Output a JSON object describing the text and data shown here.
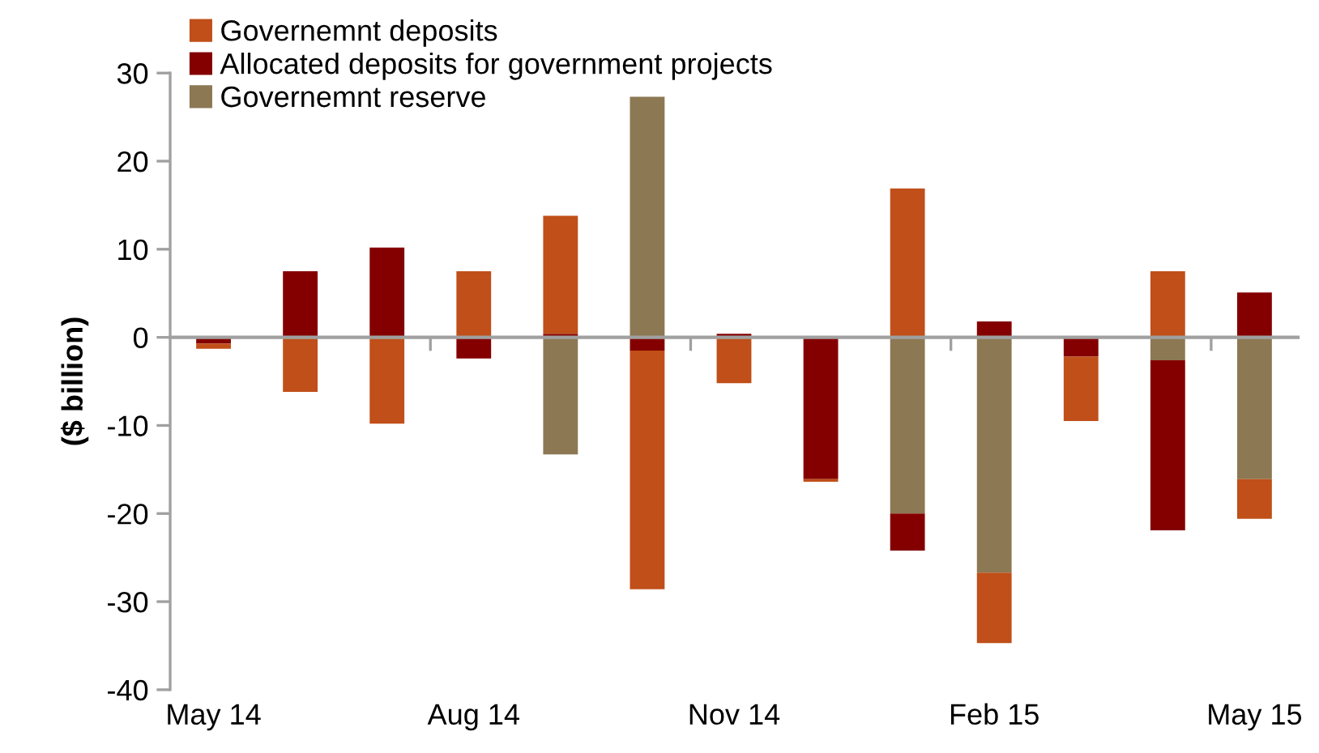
{
  "chart_data": {
    "type": "bar",
    "stacked": true,
    "ylabel": "($ billion)",
    "categories": [
      "May 14",
      null,
      null,
      "Aug 14",
      null,
      null,
      "Nov 14",
      null,
      null,
      "Feb 15",
      null,
      null,
      "May 15"
    ],
    "series": [
      {
        "name": "Governemnt reserve",
        "color": "#8c7853",
        "values": [
          0,
          0,
          0,
          0,
          -13.3,
          27.3,
          0,
          0,
          -20.0,
          -26.7,
          0,
          -2.6,
          -16.1
        ]
      },
      {
        "name": "Allocated deposits for government projects",
        "color": "#840000",
        "values": [
          -0.7,
          7.5,
          10.2,
          -2.4,
          0.4,
          -1.5,
          0.4,
          -16.1,
          -4.2,
          1.8,
          -2.2,
          -19.3,
          5.1
        ]
      },
      {
        "name": "Governemnt deposits",
        "color": "#c04f19",
        "values": [
          -0.6,
          -6.2,
          -9.8,
          7.5,
          13.4,
          -27.1,
          -5.2,
          -0.3,
          16.9,
          -8.0,
          -7.3,
          7.5,
          -4.5
        ]
      }
    ],
    "ylim": [
      -40,
      30
    ],
    "yticks": [
      -40,
      -30,
      -20,
      -10,
      0,
      10,
      20,
      30
    ],
    "legend": "top left"
  }
}
